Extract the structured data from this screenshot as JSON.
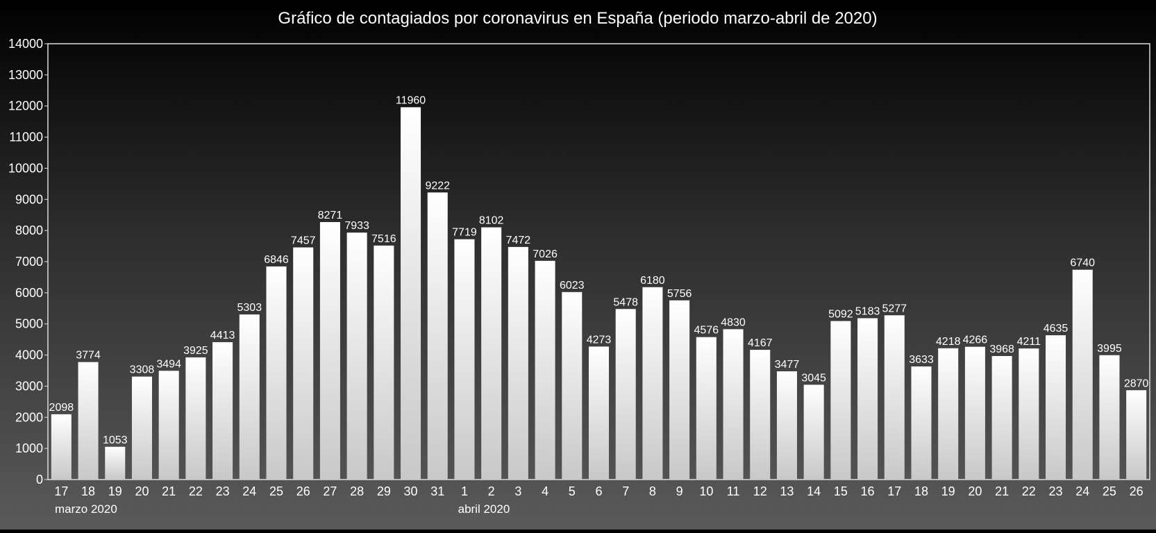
{
  "chart_data": {
    "type": "bar",
    "title": "Gráfico de contagiados por coronavirus en España (periodo marzo-abril de 2020)",
    "xlabel": "",
    "ylabel": "",
    "ylim": [
      0,
      14000
    ],
    "yticks": [
      0,
      1000,
      2000,
      3000,
      4000,
      5000,
      6000,
      7000,
      8000,
      9000,
      10000,
      11000,
      12000,
      13000,
      14000
    ],
    "categories": [
      "17",
      "18",
      "19",
      "20",
      "21",
      "22",
      "23",
      "24",
      "25",
      "26",
      "27",
      "28",
      "29",
      "30",
      "31",
      "1",
      "2",
      "3",
      "4",
      "5",
      "6",
      "7",
      "8",
      "9",
      "10",
      "11",
      "12",
      "13",
      "14",
      "15",
      "16",
      "17",
      "18",
      "19",
      "20",
      "21",
      "22",
      "23",
      "24",
      "25",
      "26"
    ],
    "values": [
      2098,
      3774,
      1053,
      3308,
      3494,
      3925,
      4413,
      5303,
      6846,
      7457,
      8271,
      7933,
      7516,
      11960,
      9222,
      7719,
      8102,
      7472,
      7026,
      6023,
      4273,
      5478,
      6180,
      5756,
      4576,
      4830,
      4167,
      3477,
      3045,
      5092,
      5183,
      5277,
      3633,
      4218,
      4266,
      3968,
      4211,
      4635,
      6740,
      3995,
      2870
    ],
    "group_labels": [
      {
        "label": "marzo 2020",
        "start_index": 0
      },
      {
        "label": "abril 2020",
        "start_index": 15
      }
    ],
    "grid": false,
    "legend": "none",
    "colors": {
      "bar_top": "#ffffff",
      "bar_bottom": "#c8c8c8",
      "text": "#ffffff",
      "axis": "#dddddd"
    }
  }
}
